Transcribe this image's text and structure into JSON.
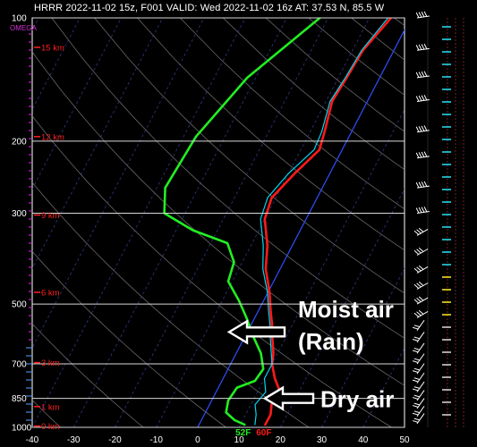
{
  "header": {
    "title": "HRRR 2022-11-02 15z, F001  VALID: Wed 2022-11-02 16z  AT: 37.53 N, 85.5 W"
  },
  "chart_data": {
    "type": "line",
    "title": "HRRR 2022-11-02 15z, F001  VALID: Wed 2022-11-02 16z  AT: 37.53 N, 85.5 W",
    "pressure_axis": {
      "scale": "log",
      "ylim": [
        1000,
        100
      ],
      "labels": [
        "100",
        "200",
        "300",
        "500",
        "700",
        "850",
        "1000"
      ],
      "label_values": [
        100,
        200,
        300,
        500,
        700,
        850,
        1000
      ],
      "omega_label": "OMEGA"
    },
    "temperature_axis": {
      "xlim": [
        -40,
        50
      ],
      "ticks": [
        "-40",
        "-30",
        "-20",
        "-10",
        "0",
        "10",
        "20",
        "30",
        "40",
        "50"
      ],
      "tick_values": [
        -40,
        -30,
        -20,
        -10,
        0,
        10,
        20,
        30,
        40,
        50
      ]
    },
    "height_labels": [
      {
        "text": "15 km",
        "p": 118
      },
      {
        "text": "12 km",
        "p": 195
      },
      {
        "text": "9 km",
        "p": 303
      },
      {
        "text": "6 km",
        "p": 468
      },
      {
        "text": "3 km",
        "p": 695
      },
      {
        "text": "1 km",
        "p": 890
      },
      {
        "text": "0 km",
        "p": 993
      }
    ],
    "grid": true,
    "series": [
      {
        "role": "temperature",
        "color": "#ff1a1a",
        "points": [
          [
            -4.8,
            100
          ],
          [
            -7.5,
            120
          ],
          [
            -8,
            140
          ],
          [
            -8.5,
            160
          ],
          [
            -6.5,
            190
          ],
          [
            -5.5,
            210
          ],
          [
            -8.5,
            240
          ],
          [
            -11,
            275
          ],
          [
            -10,
            310
          ],
          [
            -6,
            360
          ],
          [
            -3.5,
            410
          ],
          [
            0.5,
            470
          ],
          [
            3,
            520
          ],
          [
            5,
            560
          ],
          [
            7,
            610
          ],
          [
            9,
            660
          ],
          [
            10,
            700
          ],
          [
            12.5,
            760
          ],
          [
            15.5,
            820
          ],
          [
            15,
            880
          ],
          [
            16,
            930
          ],
          [
            16,
            985
          ]
        ]
      },
      {
        "role": "wetbulb",
        "color": "#00d6f0",
        "points": [
          [
            -5.5,
            100
          ],
          [
            -7.8,
            120
          ],
          [
            -8.3,
            140
          ],
          [
            -9,
            160
          ],
          [
            -7.2,
            190
          ],
          [
            -6.8,
            210
          ],
          [
            -10,
            240
          ],
          [
            -12,
            275
          ],
          [
            -11,
            310
          ],
          [
            -7,
            360
          ],
          [
            -4.2,
            410
          ],
          [
            0,
            470
          ],
          [
            2.5,
            520
          ],
          [
            4.5,
            560
          ],
          [
            6.5,
            610
          ],
          [
            8.5,
            660
          ],
          [
            10,
            700
          ],
          [
            10,
            760
          ],
          [
            12,
            820
          ],
          [
            11,
            880
          ],
          [
            12.5,
            930
          ],
          [
            13.5,
            985
          ]
        ]
      },
      {
        "role": "dewpoint",
        "color": "#22ee22",
        "points": [
          [
            -22,
            100
          ],
          [
            -32,
            140
          ],
          [
            -37,
            195
          ],
          [
            -38,
            260
          ],
          [
            -35,
            300
          ],
          [
            -26,
            330
          ],
          [
            -16,
            355
          ],
          [
            -12,
            395
          ],
          [
            -11,
            440
          ],
          [
            -6,
            490
          ],
          [
            -2,
            540
          ],
          [
            2,
            600
          ],
          [
            6,
            660
          ],
          [
            8.5,
            720
          ],
          [
            8,
            770
          ],
          [
            4.5,
            800
          ],
          [
            4,
            860
          ],
          [
            5,
            920
          ],
          [
            8,
            960
          ],
          [
            11,
            985
          ]
        ]
      }
    ],
    "wind_barbs": {
      "p": [
        100,
        120,
        140,
        160,
        190,
        220,
        260,
        300,
        340,
        380,
        420,
        460,
        500,
        540,
        580,
        620,
        660,
        700,
        740,
        780,
        820,
        860,
        900,
        940,
        980
      ]
    },
    "surface_labels": [
      {
        "text": "52F",
        "color": "#22ee22",
        "temp": 11
      },
      {
        "text": "60F",
        "color": "#ff1a1a",
        "temp": 16
      }
    ],
    "annotations": [
      {
        "text": "Moist air",
        "arrow_to_p": 585
      },
      {
        "text": "(Rain)"
      },
      {
        "text": "Dry air",
        "arrow_to_p": 850
      }
    ]
  }
}
